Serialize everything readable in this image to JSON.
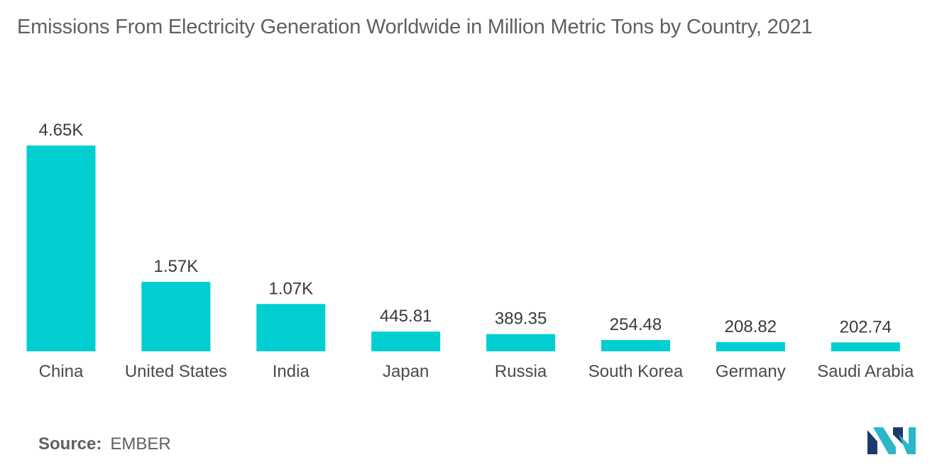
{
  "chart_data": {
    "type": "bar",
    "title": "Emissions From Electricity Generation Worldwide in Million Metric Tons by Country, 2021",
    "categories": [
      "China",
      "United States",
      "India",
      "Japan",
      "Russia",
      "South Korea",
      "Germany",
      "Saudi Arabia"
    ],
    "values": [
      4650,
      1570,
      1070,
      445.81,
      389.35,
      254.48,
      208.82,
      202.74
    ],
    "value_labels": [
      "4.65K",
      "1.57K",
      "1.07K",
      "445.81",
      "389.35",
      "254.48",
      "208.82",
      "202.74"
    ],
    "xlabel": "",
    "ylabel": "",
    "ylim": [
      0,
      4650
    ],
    "grid": false,
    "legend": "none",
    "bar_color": "#00CED1"
  },
  "source": {
    "label": "Source:",
    "value": "EMBER"
  },
  "logo": {
    "icon": "mordor-intelligence-logo-icon",
    "colors": [
      "#1B3A6B",
      "#2BB7C9"
    ]
  }
}
